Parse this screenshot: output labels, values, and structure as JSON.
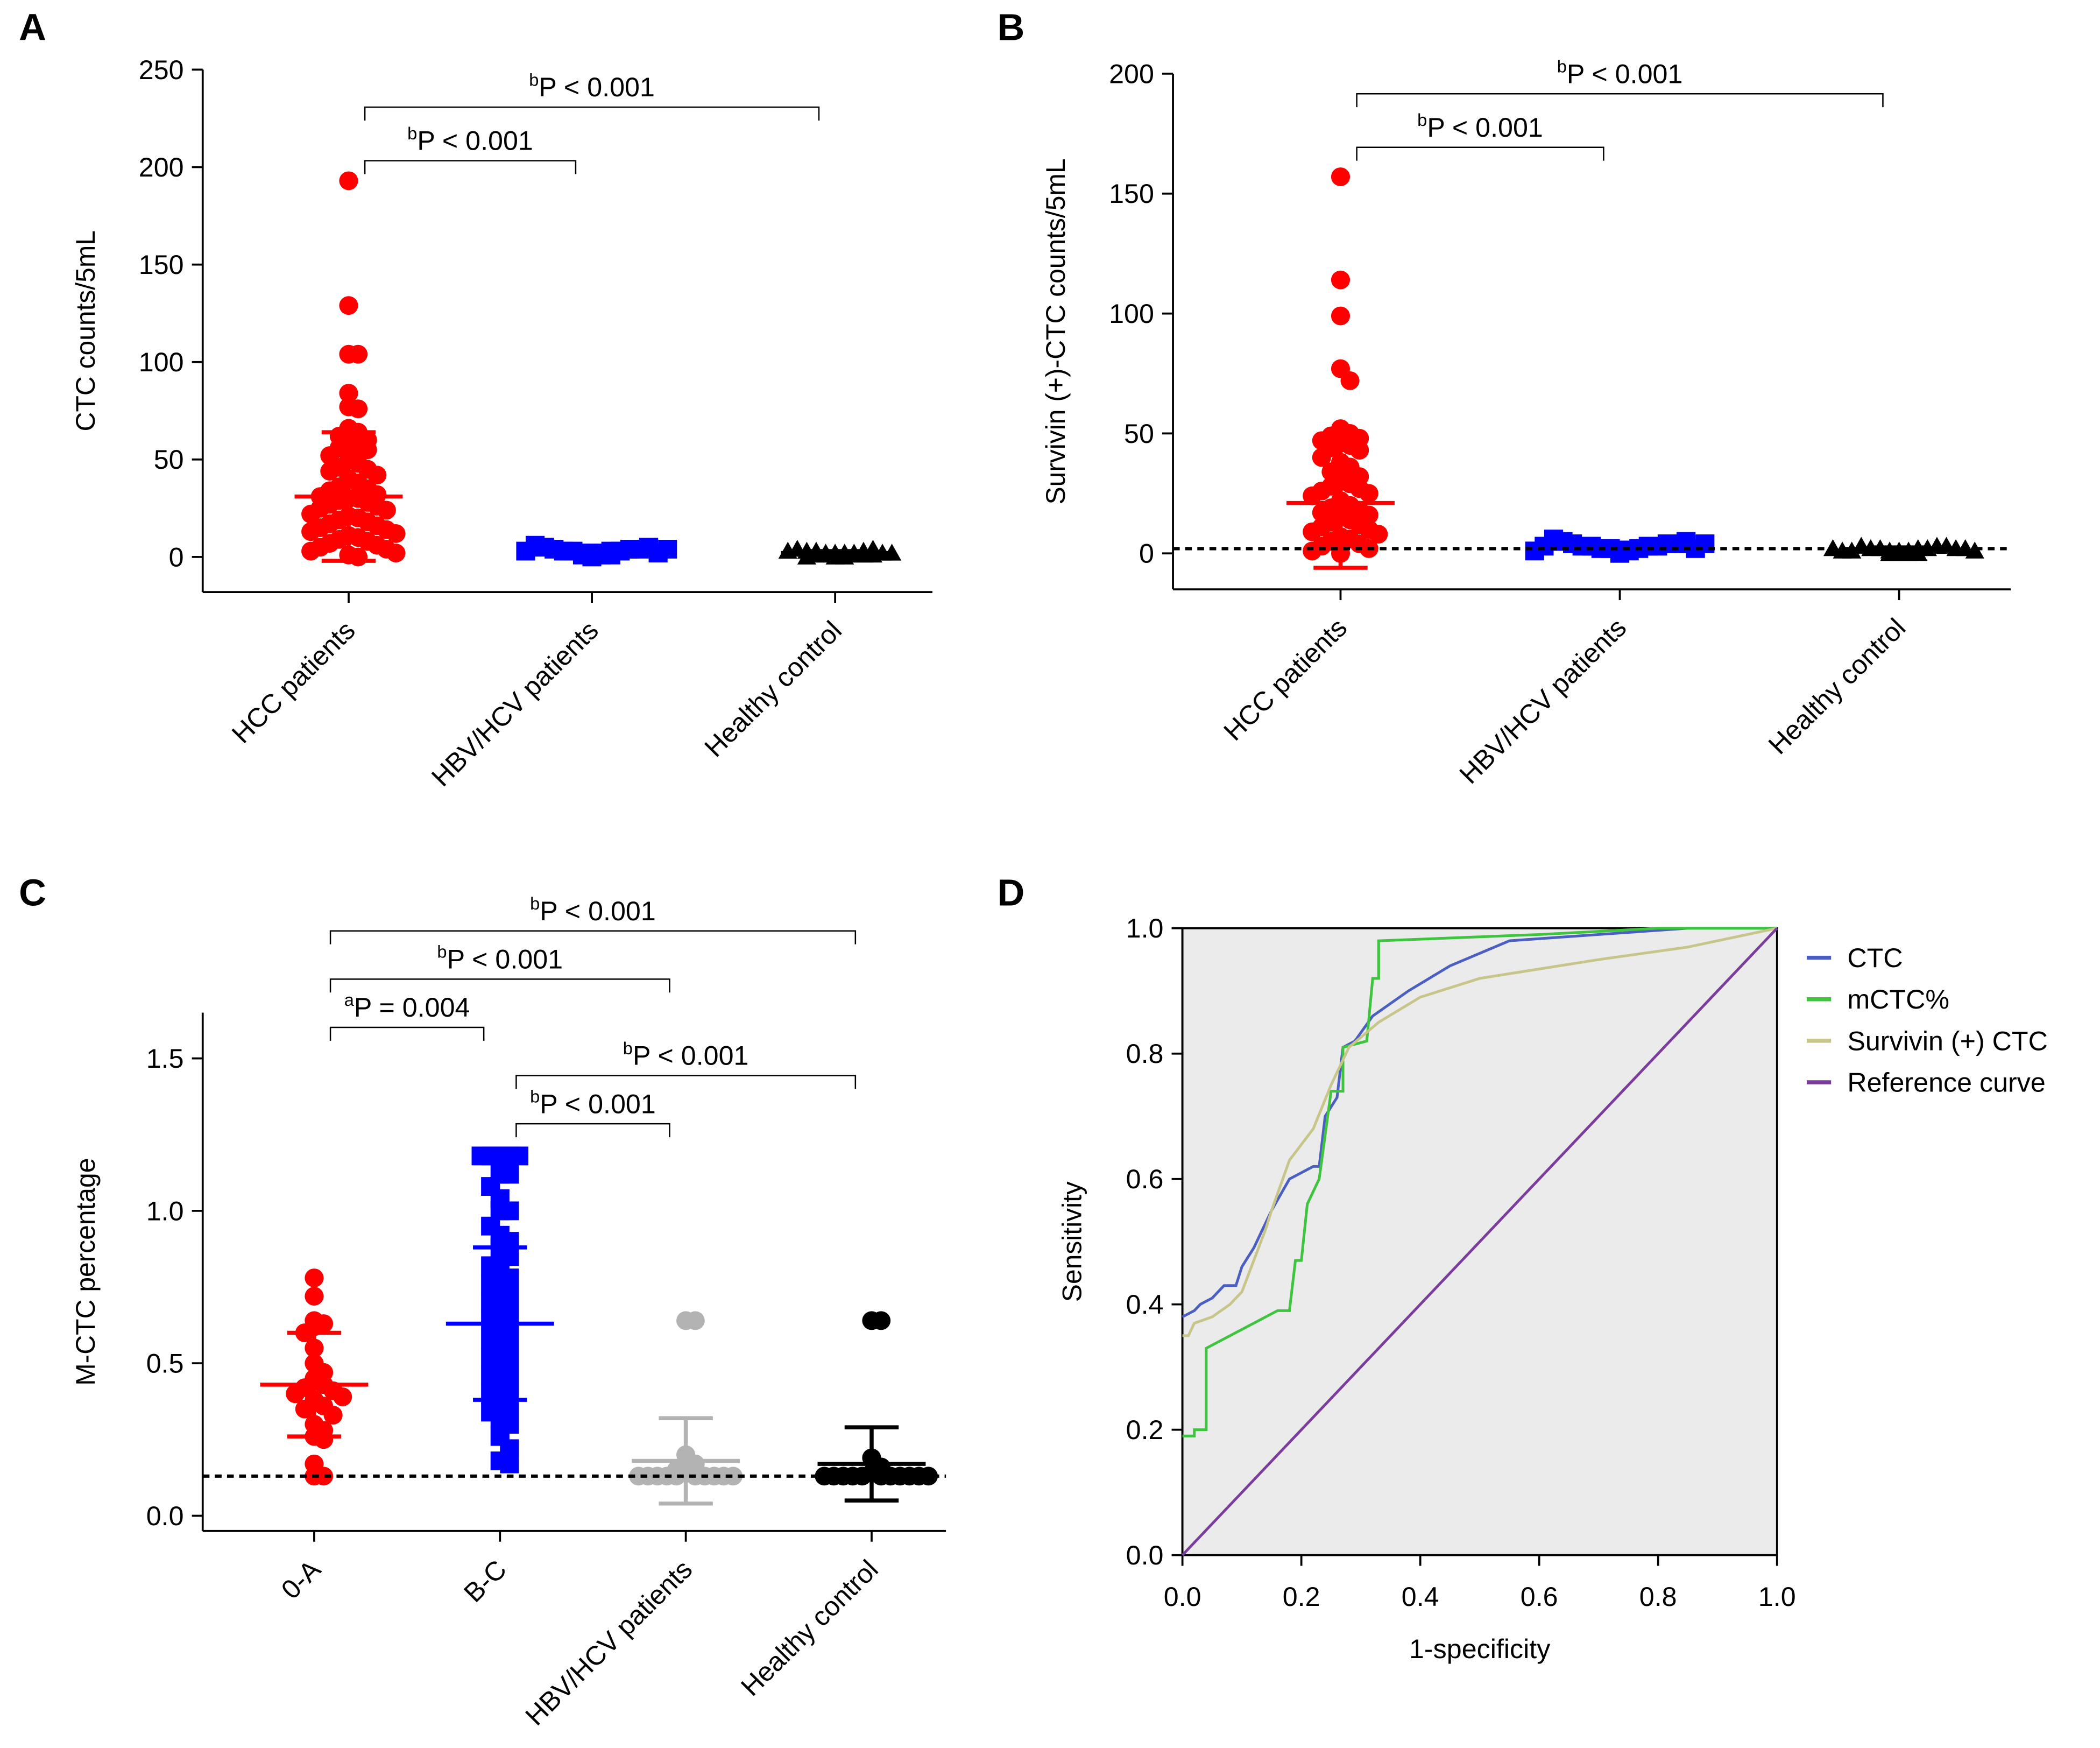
{
  "chart_data": [
    {
      "type": "dot",
      "panel_label": "A",
      "ylabel": "CTC counts/5mL",
      "ylim": [
        -18,
        250
      ],
      "yticks": [
        0,
        50,
        100,
        150,
        200,
        250
      ],
      "groups": [
        {
          "category": "HCC patients",
          "color": "#ff0000",
          "marker": "circle",
          "mean": 31,
          "sd": 33,
          "values": [
            193,
            129,
            104,
            104,
            84,
            77,
            76,
            66,
            64,
            62,
            60,
            58,
            57,
            56,
            55,
            52,
            50,
            48,
            46,
            45,
            44,
            42,
            40,
            38,
            36,
            35,
            34,
            32,
            31,
            30,
            30,
            29,
            28,
            27,
            26,
            25,
            24,
            22,
            21,
            20,
            19,
            18,
            17,
            16,
            15,
            14,
            13,
            12,
            11,
            10,
            9,
            8,
            7,
            6,
            5,
            4,
            3,
            2,
            1,
            0
          ]
        },
        {
          "category": "HBV/HCV patients",
          "color": "#0000ff",
          "marker": "square",
          "mean": 3,
          "sd": 1.5,
          "values": [
            0,
            1,
            1,
            2,
            2,
            2,
            3,
            3,
            3,
            3,
            4,
            4,
            4,
            5,
            5,
            6,
            2,
            3,
            4,
            1
          ]
        },
        {
          "category": "Healthy control",
          "color": "#000000",
          "marker": "triangle",
          "mean": 2,
          "sd": 1,
          "values": [
            0,
            0,
            1,
            1,
            1,
            2,
            2,
            2,
            2,
            3,
            3,
            3,
            4,
            4,
            1,
            2,
            3,
            0,
            2,
            1
          ]
        }
      ],
      "annotations": [
        {
          "sup": "b",
          "text": "P < 0.001",
          "from": 0,
          "to": 2
        },
        {
          "sup": "b",
          "text": "P < 0.001",
          "from": 0,
          "to": 1
        }
      ]
    },
    {
      "type": "dot",
      "panel_label": "B",
      "ylabel": "Survivin (+)-CTC counts/5mL",
      "ylim": [
        -15,
        200
      ],
      "yticks": [
        0,
        50,
        100,
        150,
        200
      ],
      "ref_line": 2,
      "groups": [
        {
          "category": "HCC patients",
          "color": "#ff0000",
          "marker": "circle",
          "mean": 21,
          "sd": 27,
          "values": [
            157,
            114,
            99,
            77,
            72,
            52,
            50,
            49,
            48,
            47,
            46,
            45,
            44,
            43,
            40,
            38,
            36,
            34,
            32,
            30,
            29,
            28,
            27,
            26,
            25,
            24,
            22,
            20,
            19,
            18,
            17,
            16,
            15,
            14,
            13,
            12,
            11,
            10,
            9,
            8,
            7,
            6,
            5,
            4,
            3,
            2,
            1,
            0
          ]
        },
        {
          "category": "HBV/HCV patients",
          "color": "#0000ff",
          "marker": "square",
          "mean": 3,
          "sd": 1.5,
          "values": [
            0,
            1,
            1,
            2,
            2,
            2,
            3,
            3,
            3,
            3,
            4,
            4,
            4,
            5,
            5,
            6,
            2,
            3,
            4,
            1
          ]
        },
        {
          "category": "Healthy control",
          "color": "#000000",
          "marker": "triangle",
          "mean": 1.5,
          "sd": 1,
          "values": [
            0,
            0,
            1,
            1,
            1,
            2,
            2,
            2,
            2,
            3,
            3,
            3,
            1,
            2,
            0,
            1,
            2,
            0,
            2,
            1
          ]
        }
      ],
      "annotations": [
        {
          "sup": "b",
          "text": "P < 0.001",
          "from": 0,
          "to": 2
        },
        {
          "sup": "b",
          "text": "P < 0.001",
          "from": 0,
          "to": 1
        }
      ]
    },
    {
      "type": "dot",
      "panel_label": "C",
      "ylabel": "M-CTC percentage",
      "ylim": [
        -0.05,
        1.65
      ],
      "yticks": [
        {
          "value": 0,
          "label": "0.0"
        },
        0.5,
        {
          "value": 1,
          "label": "1.0"
        },
        1.5
      ],
      "ref_line": 0.13,
      "groups": [
        {
          "category": "0-A",
          "color": "#ff0000",
          "marker": "circle",
          "mean": 0.43,
          "sd": 0.17,
          "values": [
            0.78,
            0.72,
            0.64,
            0.62,
            0.63,
            0.6,
            0.55,
            0.5,
            0.47,
            0.45,
            0.43,
            0.42,
            0.41,
            0.4,
            0.39,
            0.38,
            0.36,
            0.35,
            0.33,
            0.3,
            0.28,
            0.26,
            0.25,
            0.17,
            0.13,
            0.13
          ]
        },
        {
          "category": "B-C",
          "color": "#0000ff",
          "marker": "square",
          "mean": 0.63,
          "sd": 0.25,
          "values": [
            1.18,
            1.18,
            1.18,
            1.18,
            1.18,
            1.12,
            1.12,
            1.08,
            1.04,
            1.0,
            1.0,
            0.95,
            0.92,
            0.9,
            0.88,
            0.85,
            0.82,
            0.8,
            0.78,
            0.76,
            0.74,
            0.72,
            0.7,
            0.68,
            0.66,
            0.64,
            0.62,
            0.6,
            0.58,
            0.56,
            0.54,
            0.52,
            0.5,
            0.48,
            0.46,
            0.44,
            0.42,
            0.4,
            0.38,
            0.36,
            0.34,
            0.32,
            0.3,
            0.26,
            0.22,
            0.18,
            0.17
          ]
        },
        {
          "category": "HBV/HCV patients",
          "color": "#b3b3b3",
          "marker": "circle",
          "mean": 0.18,
          "sd": 0.14,
          "values": [
            0.64,
            0.64,
            0.2,
            0.17,
            0.15,
            0.14,
            0.13,
            0.13,
            0.13,
            0.13,
            0.13,
            0.13,
            0.13,
            0.13,
            0.13,
            0.13
          ]
        },
        {
          "category": "Healthy control",
          "color": "#000000",
          "marker": "circle",
          "mean": 0.17,
          "sd": 0.12,
          "values": [
            0.64,
            0.64,
            0.19,
            0.16,
            0.14,
            0.13,
            0.13,
            0.13,
            0.13,
            0.13,
            0.13,
            0.13,
            0.13,
            0.13,
            0.13,
            0.13
          ]
        }
      ],
      "annotations": [
        {
          "sup": "b",
          "text": "P < 0.001",
          "from": 0,
          "to": 3
        },
        {
          "sup": "b",
          "text": "P < 0.001",
          "from": 0,
          "to": 2
        },
        {
          "sup": "a",
          "text": "P = 0.004",
          "from": 0,
          "to": 1
        },
        {
          "sup": "b",
          "text": "P < 0.001",
          "from": 1,
          "to": 3
        },
        {
          "sup": "b",
          "text": "P < 0.001",
          "from": 1,
          "to": 2
        }
      ]
    },
    {
      "type": "line",
      "panel_label": "D",
      "xlabel": "1-specificity",
      "ylabel": "Sensitivity",
      "xlim": [
        0,
        1
      ],
      "ylim": [
        0,
        1
      ],
      "xticks": [
        {
          "value": 0,
          "label": "0.0"
        },
        0.2,
        0.4,
        0.6,
        0.8,
        {
          "value": 1,
          "label": "1.0"
        }
      ],
      "yticks": [
        {
          "value": 0,
          "label": "0.0"
        },
        0.2,
        0.4,
        0.6,
        0.8,
        {
          "value": 1,
          "label": "1.0"
        }
      ],
      "background": "#ebebeb",
      "series": [
        {
          "name": "CTC",
          "color": "#4a5fc1",
          "x": [
            0,
            0.02,
            0.03,
            0.05,
            0.07,
            0.09,
            0.1,
            0.12,
            0.15,
            0.18,
            0.22,
            0.23,
            0.24,
            0.26,
            0.27,
            0.29,
            0.32,
            0.38,
            0.45,
            0.55,
            0.7,
            0.85,
            1
          ],
          "y": [
            0.38,
            0.39,
            0.4,
            0.41,
            0.43,
            0.43,
            0.46,
            0.49,
            0.55,
            0.6,
            0.62,
            0.62,
            0.7,
            0.73,
            0.81,
            0.82,
            0.86,
            0.9,
            0.94,
            0.98,
            0.99,
            1,
            1
          ]
        },
        {
          "name": "mCTC%",
          "color": "#3ec43e",
          "x": [
            0,
            0.02,
            0.02,
            0.04,
            0.04,
            0.1,
            0.16,
            0.18,
            0.19,
            0.2,
            0.21,
            0.23,
            0.24,
            0.25,
            0.27,
            0.27,
            0.31,
            0.32,
            0.33,
            0.33,
            0.6,
            0.8,
            1
          ],
          "y": [
            0.19,
            0.19,
            0.2,
            0.2,
            0.33,
            0.36,
            0.39,
            0.39,
            0.47,
            0.47,
            0.56,
            0.6,
            0.67,
            0.74,
            0.74,
            0.81,
            0.82,
            0.92,
            0.92,
            0.98,
            0.99,
            1,
            1
          ]
        },
        {
          "name": "Survivin (+) CTC",
          "color": "#c8c58a",
          "x": [
            0,
            0.01,
            0.02,
            0.05,
            0.08,
            0.1,
            0.14,
            0.15,
            0.18,
            0.22,
            0.25,
            0.28,
            0.33,
            0.4,
            0.5,
            0.7,
            0.85,
            1
          ],
          "y": [
            0.35,
            0.35,
            0.37,
            0.38,
            0.4,
            0.42,
            0.52,
            0.55,
            0.63,
            0.68,
            0.75,
            0.81,
            0.85,
            0.89,
            0.92,
            0.95,
            0.97,
            1
          ]
        },
        {
          "name": "Reference curve",
          "color": "#7a3d9b",
          "x": [
            0,
            1
          ],
          "y": [
            0,
            1
          ]
        }
      ]
    }
  ]
}
